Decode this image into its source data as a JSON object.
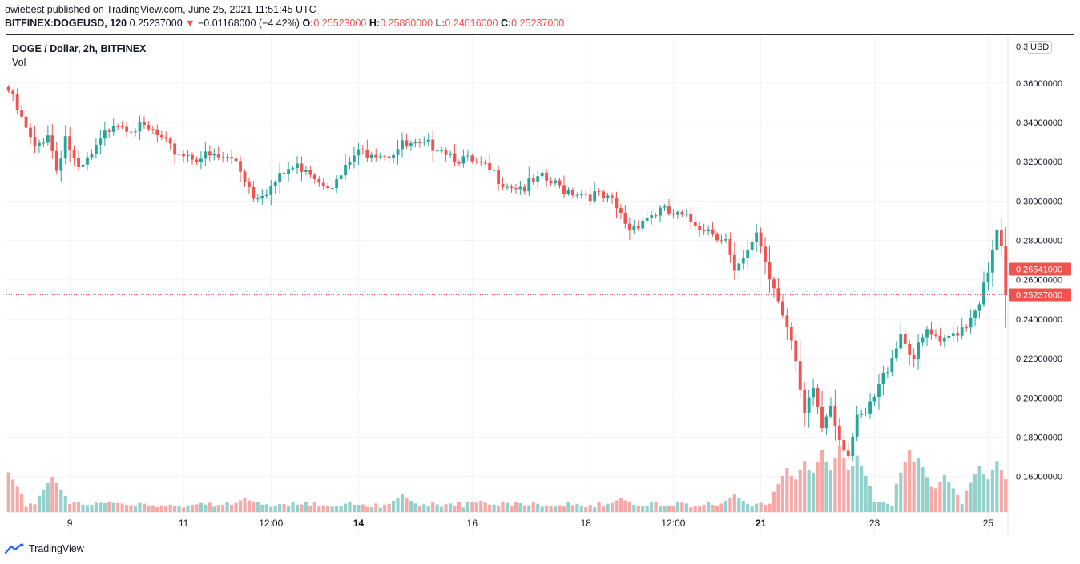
{
  "header": {
    "published": "owiebest published on TradingView.com, June 25, 2021 11:51:45 UTC",
    "symbol": "BITFINEX:DOGEUSD, 120",
    "last": "0.25237000",
    "arrow": "▼",
    "change": "−0.01168000 (−4.42%)",
    "o_label": "O:",
    "o_value": "0.25523000",
    "h_label": "H:",
    "h_value": "0.25880000",
    "l_label": "L:",
    "l_value": "0.24616000",
    "c_label": "C:",
    "c_value": "0.25237000"
  },
  "legend": {
    "title": "DOGE / Dollar, 2h, BITFINEX",
    "vol": "Vol"
  },
  "currency": "USD",
  "footer": {
    "brand": "TradingView"
  },
  "colors": {
    "up": "#26a69a",
    "down": "#ef5350",
    "up_vol": "#94d1cc",
    "down_vol": "#f6a9a7",
    "grid": "#f0f3fa"
  },
  "chart_data": {
    "type": "candlestick",
    "title": "DOGE / Dollar, 2h, BITFINEX",
    "ylim": [
      0.142,
      0.3843
    ],
    "y_ticks": [
      "0.36000000",
      "0.34000000",
      "0.32000000",
      "0.30000000",
      "0.28000000",
      "0.26000000",
      "0.24000000",
      "0.22000000",
      "0.20000000",
      "0.18000000",
      "0.16000000"
    ],
    "y_top_partial": "0.3",
    "x_tick_labels": [
      "9",
      "11",
      "12:00",
      "14",
      "16",
      "18",
      "12:00",
      "21",
      "23",
      "25"
    ],
    "x_tick_bar_index": [
      14,
      40,
      60,
      80,
      106,
      132,
      152,
      172,
      198,
      224
    ],
    "bars_shown": 229,
    "price_line": {
      "value": 0.25237,
      "label": "0.25237000"
    },
    "current_marker": {
      "value": 0.26541,
      "label": "0.26541000"
    },
    "candle_waypoints": [
      [
        0,
        0.356
      ],
      [
        3,
        0.341
      ],
      [
        6,
        0.326
      ],
      [
        9,
        0.335
      ],
      [
        11,
        0.316
      ],
      [
        13,
        0.333
      ],
      [
        16,
        0.314
      ],
      [
        20,
        0.326
      ],
      [
        24,
        0.341
      ],
      [
        28,
        0.338
      ],
      [
        33,
        0.335
      ],
      [
        37,
        0.326
      ],
      [
        42,
        0.323
      ],
      [
        47,
        0.322
      ],
      [
        52,
        0.321
      ],
      [
        56,
        0.303
      ],
      [
        60,
        0.307
      ],
      [
        64,
        0.316
      ],
      [
        68,
        0.318
      ],
      [
        71,
        0.311
      ],
      [
        75,
        0.309
      ],
      [
        79,
        0.323
      ],
      [
        83,
        0.326
      ],
      [
        87,
        0.324
      ],
      [
        90,
        0.328
      ],
      [
        94,
        0.327
      ],
      [
        98,
        0.329
      ],
      [
        102,
        0.323
      ],
      [
        106,
        0.319
      ],
      [
        110,
        0.315
      ],
      [
        114,
        0.309
      ],
      [
        118,
        0.307
      ],
      [
        122,
        0.311
      ],
      [
        126,
        0.307
      ],
      [
        130,
        0.305
      ],
      [
        134,
        0.303
      ],
      [
        138,
        0.299
      ],
      [
        142,
        0.286
      ],
      [
        145,
        0.291
      ],
      [
        149,
        0.295
      ],
      [
        153,
        0.292
      ],
      [
        157,
        0.289
      ],
      [
        161,
        0.285
      ],
      [
        164,
        0.28
      ],
      [
        166,
        0.262
      ],
      [
        169,
        0.273
      ],
      [
        171,
        0.285
      ],
      [
        174,
        0.262
      ],
      [
        176,
        0.252
      ],
      [
        179,
        0.228
      ],
      [
        182,
        0.19
      ],
      [
        184,
        0.205
      ],
      [
        186,
        0.185
      ],
      [
        188,
        0.198
      ],
      [
        190,
        0.18
      ],
      [
        192,
        0.172
      ],
      [
        194,
        0.188
      ],
      [
        196,
        0.191
      ],
      [
        198,
        0.2
      ],
      [
        201,
        0.216
      ],
      [
        204,
        0.233
      ],
      [
        207,
        0.22
      ],
      [
        210,
        0.234
      ],
      [
        213,
        0.226
      ],
      [
        216,
        0.233
      ],
      [
        219,
        0.238
      ],
      [
        222,
        0.25
      ],
      [
        224,
        0.262
      ],
      [
        226,
        0.285
      ],
      [
        228,
        0.266
      ]
    ],
    "volume_units": "relative",
    "volume_peak_bars": [
      [
        0,
        0.45
      ],
      [
        10,
        0.4
      ],
      [
        54,
        0.16
      ],
      [
        90,
        0.2
      ],
      [
        108,
        0.13
      ],
      [
        140,
        0.16
      ],
      [
        166,
        0.2
      ],
      [
        178,
        0.5
      ],
      [
        182,
        0.58
      ],
      [
        186,
        0.7
      ],
      [
        190,
        0.75
      ],
      [
        194,
        0.64
      ],
      [
        206,
        0.7
      ],
      [
        208,
        0.62
      ],
      [
        214,
        0.42
      ],
      [
        222,
        0.52
      ],
      [
        226,
        0.58
      ]
    ]
  }
}
